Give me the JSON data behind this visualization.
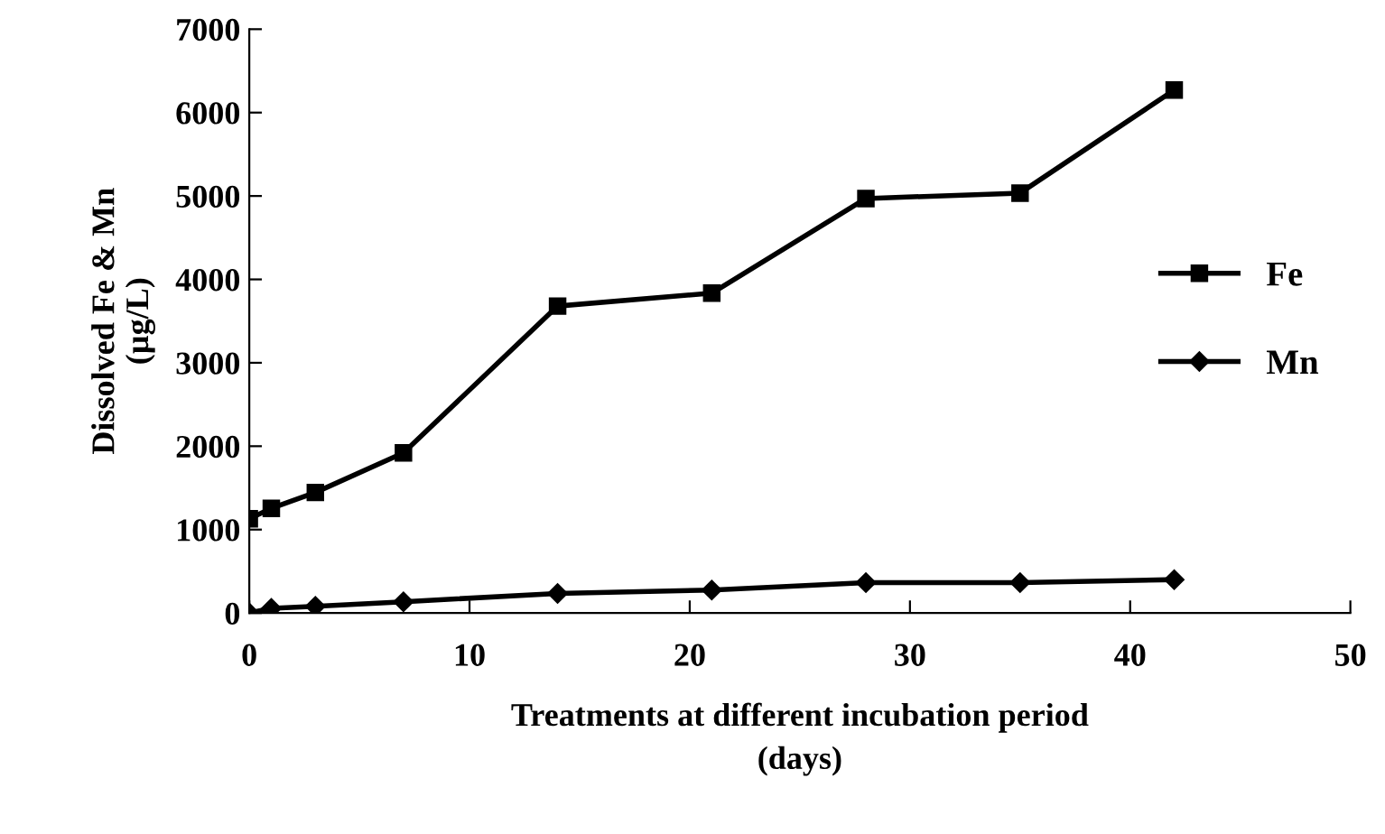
{
  "chart_data": {
    "type": "line",
    "xlabel": "Treatments at different incubation period\n(days)",
    "ylabel": "Dissolved Fe & Mn\n(µg/L)",
    "x": [
      0,
      1,
      3,
      7,
      14,
      21,
      28,
      35,
      42
    ],
    "series": [
      {
        "name": "Fe",
        "color": "#000000",
        "marker": "square",
        "values": [
          1130,
          1255,
          1445,
          1920,
          3680,
          3835,
          4970,
          5035,
          6270
        ]
      },
      {
        "name": "Mn",
        "color": "#000000",
        "marker": "diamond",
        "values": [
          0,
          55,
          80,
          135,
          235,
          275,
          365,
          365,
          400
        ]
      }
    ],
    "xlim": [
      0,
      50
    ],
    "xticks": [
      0,
      10,
      20,
      30,
      40,
      50
    ],
    "ylim": [
      0,
      7000
    ],
    "yticks": [
      0,
      1000,
      2000,
      3000,
      4000,
      5000,
      6000,
      7000
    ],
    "grid": false,
    "legend": "right",
    "line_style": "solid"
  }
}
